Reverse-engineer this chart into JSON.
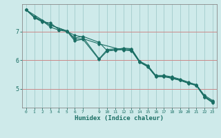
{
  "title": "",
  "xlabel": "Humidex (Indice chaleur)",
  "ylabel": "",
  "bg_color": "#ceeaea",
  "line_color": "#1a6e64",
  "grid_color": "#a8d0d0",
  "red_line_color": "#cc8888",
  "axis_color": "#888888",
  "xlim": [
    -0.5,
    23.5
  ],
  "ylim": [
    4.35,
    7.95
  ],
  "yticks": [
    5,
    6,
    7
  ],
  "ytick_labels": [
    "5",
    "6",
    "7"
  ],
  "xticks": [
    0,
    1,
    2,
    3,
    4,
    5,
    6,
    7,
    9,
    10,
    11,
    12,
    13,
    14,
    15,
    16,
    17,
    18,
    19,
    20,
    21,
    22,
    23
  ],
  "lines": [
    {
      "x": [
        0,
        1,
        2,
        3,
        4,
        5,
        6,
        7,
        9,
        10,
        11,
        12,
        13,
        14,
        15,
        16,
        17,
        18,
        19,
        20,
        21,
        22,
        23
      ],
      "y": [
        7.75,
        7.52,
        7.37,
        7.15,
        7.05,
        7.0,
        6.87,
        6.8,
        6.05,
        6.37,
        6.4,
        6.4,
        6.38,
        5.95,
        5.78,
        5.45,
        5.45,
        5.4,
        5.32,
        5.22,
        5.15,
        4.78,
        4.6
      ]
    },
    {
      "x": [
        0,
        1,
        2,
        3,
        4,
        5,
        6,
        7,
        9,
        10,
        11,
        12,
        13,
        14,
        15,
        16,
        17,
        18,
        19,
        20,
        21,
        22,
        23
      ],
      "y": [
        7.75,
        7.48,
        7.33,
        7.3,
        7.07,
        7.02,
        6.77,
        6.83,
        6.62,
        6.33,
        6.37,
        6.42,
        6.4,
        5.97,
        5.82,
        5.47,
        5.47,
        5.42,
        5.34,
        5.24,
        5.14,
        4.74,
        4.57
      ]
    },
    {
      "x": [
        0,
        3,
        5,
        6,
        7,
        9,
        10,
        11,
        12,
        13,
        14,
        15,
        16,
        17,
        18,
        19,
        20,
        21,
        22,
        23
      ],
      "y": [
        7.75,
        7.22,
        7.02,
        6.67,
        6.73,
        6.02,
        6.32,
        6.35,
        6.37,
        6.35,
        5.93,
        5.8,
        5.43,
        5.43,
        5.37,
        5.3,
        5.2,
        5.12,
        4.72,
        4.54
      ]
    },
    {
      "x": [
        0,
        1,
        2,
        3,
        5,
        6,
        7,
        9,
        12,
        13,
        14,
        15,
        16,
        17,
        18,
        19,
        20,
        21,
        22,
        23
      ],
      "y": [
        7.75,
        7.5,
        7.35,
        7.22,
        7.02,
        6.73,
        6.75,
        6.57,
        6.35,
        6.33,
        5.93,
        5.77,
        5.43,
        5.43,
        5.37,
        5.3,
        5.2,
        5.12,
        4.72,
        4.52
      ]
    }
  ]
}
